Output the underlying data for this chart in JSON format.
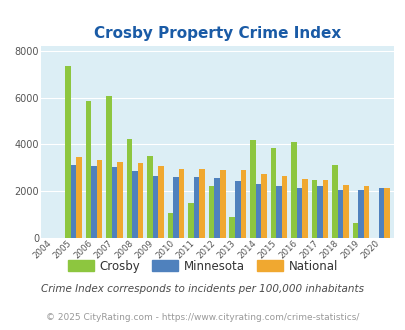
{
  "title": "Crosby Property Crime Index",
  "years": [
    2004,
    2005,
    2006,
    2007,
    2008,
    2009,
    2010,
    2011,
    2012,
    2013,
    2014,
    2015,
    2016,
    2017,
    2018,
    2019,
    2020
  ],
  "crosby": [
    0,
    7350,
    5850,
    6080,
    4220,
    3500,
    1050,
    1480,
    2200,
    870,
    4170,
    3820,
    4080,
    2450,
    3130,
    640,
    0
  ],
  "minnesota": [
    0,
    3100,
    3080,
    3010,
    2840,
    2620,
    2580,
    2600,
    2560,
    2420,
    2290,
    2200,
    2110,
    2230,
    2050,
    2060,
    2110
  ],
  "national": [
    0,
    3450,
    3340,
    3250,
    3210,
    3060,
    2960,
    2920,
    2900,
    2880,
    2730,
    2620,
    2500,
    2470,
    2240,
    2190,
    2110
  ],
  "bar_width": 0.27,
  "ylim": [
    0,
    8200
  ],
  "yticks": [
    0,
    2000,
    4000,
    6000,
    8000
  ],
  "colors": {
    "crosby": "#8dc63f",
    "minnesota": "#4f81bd",
    "national": "#f0a830"
  },
  "bg_color": "#dceef5",
  "grid_color": "#ffffff",
  "title_color": "#1a5ba6",
  "legend_labels": [
    "Crosby",
    "Minnesota",
    "National"
  ],
  "footnote1": "Crime Index corresponds to incidents per 100,000 inhabitants",
  "footnote2": "© 2025 CityRating.com - https://www.cityrating.com/crime-statistics/",
  "footnote1_color": "#4a4a4a",
  "footnote2_color": "#999999"
}
